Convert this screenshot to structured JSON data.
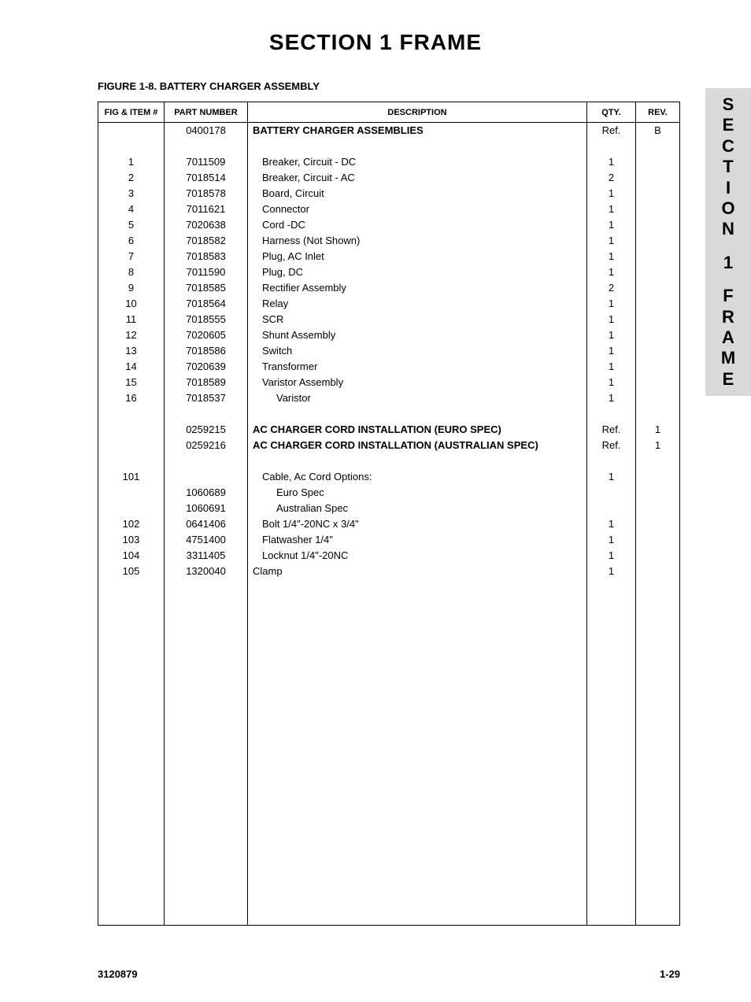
{
  "page": {
    "title": "SECTION 1   FRAME",
    "figureTitle": "FIGURE 1-8.  BATTERY CHARGER ASSEMBLY",
    "footerLeft": "3120879",
    "footerRight": "1-29"
  },
  "sideTab": {
    "line1": "SECTION",
    "line2": "1",
    "line3": "FRAME"
  },
  "table": {
    "headers": {
      "fig": "FIG & ITEM #",
      "part": "PART NUMBER",
      "desc": "DESCRIPTION",
      "qty": "QTY.",
      "rev": "REV."
    },
    "rows": [
      {
        "fig": "",
        "part": "0400178",
        "desc": "BATTERY CHARGER ASSEMBLIES",
        "qty": "Ref.",
        "rev": "B",
        "bold": true,
        "indent": 0
      },
      {
        "fig": "",
        "part": "",
        "desc": "",
        "qty": "",
        "rev": "",
        "indent": 0
      },
      {
        "fig": "1",
        "part": "7011509",
        "desc": "Breaker, Circuit - DC",
        "qty": "1",
        "rev": "",
        "indent": 1
      },
      {
        "fig": "2",
        "part": "7018514",
        "desc": "Breaker, Circuit - AC",
        "qty": "2",
        "rev": "",
        "indent": 1
      },
      {
        "fig": "3",
        "part": "7018578",
        "desc": "Board, Circuit",
        "qty": "1",
        "rev": "",
        "indent": 1
      },
      {
        "fig": "4",
        "part": "7011621",
        "desc": "Connector",
        "qty": "1",
        "rev": "",
        "indent": 1
      },
      {
        "fig": "5",
        "part": "7020638",
        "desc": "Cord -DC",
        "qty": "1",
        "rev": "",
        "indent": 1
      },
      {
        "fig": "6",
        "part": "7018582",
        "desc": "Harness (Not Shown)",
        "qty": "1",
        "rev": "",
        "indent": 1
      },
      {
        "fig": "7",
        "part": "7018583",
        "desc": "Plug, AC Inlet",
        "qty": "1",
        "rev": "",
        "indent": 1
      },
      {
        "fig": "8",
        "part": "7011590",
        "desc": "Plug, DC",
        "qty": "1",
        "rev": "",
        "indent": 1
      },
      {
        "fig": "9",
        "part": "7018585",
        "desc": "Rectifier Assembly",
        "qty": "2",
        "rev": "",
        "indent": 1
      },
      {
        "fig": "10",
        "part": "7018564",
        "desc": "Relay",
        "qty": "1",
        "rev": "",
        "indent": 1
      },
      {
        "fig": "11",
        "part": "7018555",
        "desc": "SCR",
        "qty": "1",
        "rev": "",
        "indent": 1
      },
      {
        "fig": "12",
        "part": "7020605",
        "desc": "Shunt Assembly",
        "qty": "1",
        "rev": "",
        "indent": 1
      },
      {
        "fig": "13",
        "part": "7018586",
        "desc": "Switch",
        "qty": "1",
        "rev": "",
        "indent": 1
      },
      {
        "fig": "14",
        "part": "7020639",
        "desc": "Transformer",
        "qty": "1",
        "rev": "",
        "indent": 1
      },
      {
        "fig": "15",
        "part": "7018589",
        "desc": "Varistor Assembly",
        "qty": "1",
        "rev": "",
        "indent": 1
      },
      {
        "fig": "16",
        "part": "7018537",
        "desc": "Varistor",
        "qty": "1",
        "rev": "",
        "indent": 2
      },
      {
        "fig": "",
        "part": "",
        "desc": "",
        "qty": "",
        "rev": "",
        "indent": 0
      },
      {
        "fig": "",
        "part": "0259215",
        "desc": "AC CHARGER CORD INSTALLATION (EURO SPEC)",
        "qty": "Ref.",
        "rev": "1",
        "bold": true,
        "indent": 0
      },
      {
        "fig": "",
        "part": "0259216",
        "desc": "AC CHARGER CORD INSTALLATION (AUSTRALIAN SPEC)",
        "qty": "Ref.",
        "rev": "1",
        "bold": true,
        "indent": 0
      },
      {
        "fig": "",
        "part": "",
        "desc": "",
        "qty": "",
        "rev": "",
        "indent": 0
      },
      {
        "fig": "101",
        "part": "",
        "desc": "Cable, Ac Cord Options:",
        "qty": "1",
        "rev": "",
        "indent": 1
      },
      {
        "fig": "",
        "part": "1060689",
        "desc": "Euro Spec",
        "qty": "",
        "rev": "",
        "indent": 2
      },
      {
        "fig": "",
        "part": "1060691",
        "desc": "Australian Spec",
        "qty": "",
        "rev": "",
        "indent": 2
      },
      {
        "fig": "102",
        "part": "0641406",
        "desc": "Bolt 1/4\"-20NC x 3/4\"",
        "qty": "1",
        "rev": "",
        "indent": 1
      },
      {
        "fig": "103",
        "part": "4751400",
        "desc": "Flatwasher 1/4\"",
        "qty": "1",
        "rev": "",
        "indent": 1
      },
      {
        "fig": "104",
        "part": "3311405",
        "desc": "Locknut 1/4\"-20NC",
        "qty": "1",
        "rev": "",
        "indent": 1
      },
      {
        "fig": "105",
        "part": "1320040",
        "desc": "Clamp",
        "qty": "1",
        "rev": "",
        "indent": 0
      }
    ],
    "emptyRows": 22
  }
}
